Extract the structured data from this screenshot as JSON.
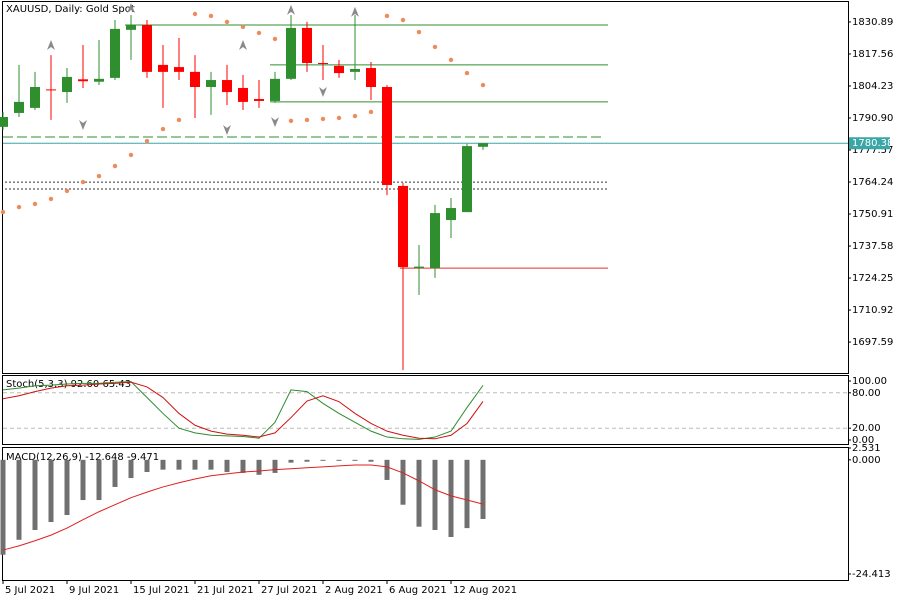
{
  "chart_data": [
    {
      "type": "candlestick",
      "title": "XAUUSD, Daily:  Gold Spot",
      "categories": [
        "5 Jul 2021",
        null,
        null,
        null,
        "9 Jul 2021",
        null,
        null,
        null,
        "15 Jul 2021",
        null,
        null,
        null,
        "21 Jul 2021",
        null,
        null,
        null,
        "27 Jul 2021",
        null,
        null,
        null,
        "2 Aug 2021",
        null,
        null,
        null,
        "6 Aug 2021",
        null,
        null,
        null,
        "12 Aug 2021",
        null,
        null
      ],
      "open": [
        1787.2,
        1793.0,
        1795.1,
        1802.8,
        1801.7,
        1807.0,
        1806.0,
        1807.6,
        1827.6,
        1829.6,
        1813.0,
        1812.1,
        1810.1,
        1803.8,
        1806.7,
        1803.4,
        1798.8,
        1798.0,
        1807.2,
        1828.4,
        1813.8,
        1812.6,
        1810.1,
        1811.7,
        1803.8,
        1762.6,
        1728.4,
        1728.4,
        1748.4,
        1751.7,
        1778.9
      ],
      "high": [
        1793.4,
        1813.0,
        1810.1,
        1817.1,
        1811.7,
        1821.3,
        1823.4,
        1831.7,
        1833.8,
        1831.7,
        1821.3,
        1824.2,
        1817.1,
        1810.1,
        1813.0,
        1808.8,
        1806.7,
        1810.1,
        1833.8,
        1830.9,
        1821.3,
        1815.1,
        1833.8,
        1814.2,
        1804.6,
        1763.8,
        1738.0,
        1754.7,
        1757.6,
        1780.1,
        1780.5
      ],
      "low": [
        1785.9,
        1791.3,
        1794.2,
        1790.1,
        1797.2,
        1803.4,
        1804.6,
        1806.7,
        1815.1,
        1807.6,
        1795.1,
        1806.7,
        1790.9,
        1792.2,
        1796.3,
        1794.2,
        1795.1,
        1797.2,
        1806.7,
        1810.1,
        1806.7,
        1807.6,
        1806.7,
        1798.4,
        1758.8,
        1685.9,
        1717.2,
        1724.3,
        1740.9,
        1751.7,
        1777.6
      ],
      "close": [
        1791.3,
        1797.6,
        1803.8,
        1802.5,
        1808.0,
        1806.2,
        1807.2,
        1828.0,
        1829.6,
        1810.1,
        1810.1,
        1810.1,
        1803.8,
        1806.7,
        1801.7,
        1797.6,
        1798.0,
        1807.2,
        1828.4,
        1813.8,
        1813.4,
        1809.6,
        1811.3,
        1803.8,
        1763.0,
        1728.8,
        1729.0,
        1751.3,
        1753.4,
        1779.2,
        1780.38
      ],
      "up_color": "#2f8f2f",
      "down_color": "#ff0000",
      "ylim": [
        1684.7,
        1839.2
      ],
      "yticks": [
        1830.89,
        1817.56,
        1804.23,
        {
          "value": 1790.9,
          "label": "1790.90"
        },
        1777.57,
        1764.24,
        1750.91,
        1737.58,
        1724.25,
        1710.92,
        1697.59
      ],
      "current_price": {
        "value": 1780.38,
        "color": "#3aa6a6"
      },
      "hlines": [
        {
          "value": 1829.6,
          "color": "#2f8f2f",
          "style": "solid"
        },
        {
          "value": 1813.0,
          "color": "#2f8f2f",
          "style": "solid"
        },
        {
          "value": 1797.6,
          "color": "#2f8f2f",
          "style": "solid"
        },
        {
          "value": 1783.0,
          "color": "#2f8f2f",
          "style": "dashed"
        },
        {
          "value": 1764.2,
          "color": "#333333",
          "style": "dotted"
        },
        {
          "value": 1761.3,
          "color": "#333333",
          "style": "dotted"
        },
        {
          "value": 1728.4,
          "color": "#e03030",
          "style": "solid"
        }
      ],
      "sar": {
        "color": "#f08a5d",
        "values": [
          1751.7,
          1753.8,
          1755.1,
          1757.2,
          1760.5,
          1764.2,
          1766.7,
          1770.9,
          1775.5,
          1781.3,
          1786.3,
          1790.1,
          1834.2,
          1833.4,
          1830.9,
          1828.8,
          1826.3,
          1823.8,
          1789.7,
          1790.1,
          1790.5,
          1790.9,
          1791.7,
          1793.4,
          1833.4,
          1831.7,
          1826.7,
          1820.5,
          1815.1,
          1809.6,
          1804.6
        ]
      },
      "fractals": {
        "color": "#8a8a8a",
        "up": [
          null,
          null,
          null,
          1821.3,
          null,
          null,
          null,
          null,
          1836.7,
          null,
          null,
          null,
          null,
          null,
          null,
          1821.3,
          null,
          null,
          1835.9,
          null,
          null,
          null,
          1835.1,
          null,
          null,
          null,
          null,
          null,
          null,
          null,
          null
        ],
        "down": [
          null,
          null,
          null,
          null,
          null,
          1788.0,
          null,
          null,
          null,
          null,
          null,
          null,
          null,
          null,
          1785.9,
          null,
          null,
          1789.2,
          null,
          null,
          1801.7,
          null,
          null,
          null,
          null,
          null,
          null,
          null,
          null,
          null,
          null
        ]
      }
    },
    {
      "type": "line",
      "title": "Stoch(5,3,3) 92.60 65.43",
      "series": [
        {
          "color": "#2e8b2e",
          "values": [
            85,
            88,
            92,
            93,
            95,
            96,
            96,
            98,
            99,
            72,
            45,
            20,
            12,
            8,
            7,
            6,
            3,
            30,
            85,
            82,
            62,
            45,
            30,
            15,
            5,
            2,
            1,
            5,
            15,
            55,
            92.6
          ]
        },
        {
          "color": "#d01010",
          "values": [
            70,
            75,
            82,
            88,
            92,
            93,
            95,
            96,
            98,
            90,
            72,
            45,
            25,
            15,
            10,
            8,
            5,
            12,
            38,
            66,
            75,
            65,
            45,
            28,
            15,
            8,
            3,
            2,
            8,
            28,
            65.43
          ]
        }
      ],
      "ylim": [
        -6.8,
        108.5
      ],
      "yticks": [
        {
          "value": 100,
          "label": "100.00"
        },
        {
          "value": 80,
          "label": "80.00"
        },
        {
          "value": 20,
          "label": "20.00"
        },
        {
          "value": 0,
          "label": "0.00"
        }
      ],
      "levels": [
        80,
        20
      ]
    },
    {
      "type": "macd",
      "title": "MACD(12,26,9) -12.648 -9.471",
      "values": [
        -20.3,
        -17.1,
        -15.0,
        -13.3,
        -11.8,
        -8.6,
        -8.6,
        -5.8,
        -3.9,
        -2.6,
        -2.1,
        -2.1,
        -2.1,
        -2.1,
        -2.6,
        -2.8,
        -3.2,
        -2.8,
        -0.6,
        -0.4,
        -0.2,
        -0.2,
        -0.2,
        -0.4,
        -4.3,
        -9.6,
        -14.3,
        -15.0,
        -16.5,
        -14.6,
        -12.648
      ],
      "color": "#707070",
      "signal": {
        "color": "#e02020",
        "values": [
          -19.3,
          -18.4,
          -17.3,
          -16.1,
          -14.6,
          -12.8,
          -11.1,
          -9.6,
          -8.1,
          -6.9,
          -5.8,
          -4.9,
          -4.1,
          -3.4,
          -3.0,
          -2.6,
          -2.4,
          -2.1,
          -1.9,
          -1.7,
          -1.5,
          -1.3,
          -1.1,
          -1.1,
          -1.5,
          -2.8,
          -4.5,
          -6.4,
          -7.7,
          -8.6,
          -9.471
        ]
      },
      "ylim": [
        -25.7,
        2.531
      ],
      "yticks": [
        2.531,
        {
          "value": 0,
          "label": "0.000"
        },
        -24.413
      ]
    }
  ]
}
